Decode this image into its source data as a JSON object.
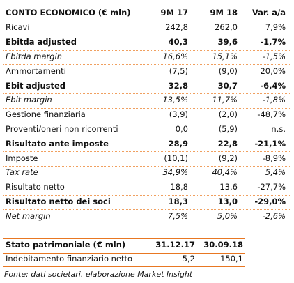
{
  "income_statement": {
    "header": [
      "CONTO ECONOMICO (€ mln)",
      "9M 17",
      "9M 18",
      "Var. a/a"
    ],
    "rows": [
      {
        "cells": [
          "Ricavi",
          "242,8",
          "262,0",
          "7,9%"
        ],
        "style": "normal"
      },
      {
        "cells": [
          "Ebitda adjusted",
          "40,3",
          "39,6",
          "-1,7%"
        ],
        "style": "bold"
      },
      {
        "cells": [
          "Ebitda margin",
          "16,6%",
          "15,1%",
          "-1,5%"
        ],
        "style": "italic"
      },
      {
        "cells": [
          "Ammortamenti",
          "(7,5)",
          "(9,0)",
          "20,0%"
        ],
        "style": "normal"
      },
      {
        "cells": [
          "Ebit adjusted",
          "32,8",
          "30,7",
          "-6,4%"
        ],
        "style": "bold"
      },
      {
        "cells": [
          "Ebit margin",
          "13,5%",
          "11,7%",
          "-1,8%"
        ],
        "style": "italic"
      },
      {
        "cells": [
          "Gestione finanziaria",
          "(3,9)",
          "(2,0)",
          "-48,7%"
        ],
        "style": "normal"
      },
      {
        "cells": [
          "Proventi/oneri non ricorrenti",
          "0,0",
          "(5,9)",
          "n.s."
        ],
        "style": "normal"
      },
      {
        "cells": [
          "Risultato ante imposte",
          "28,9",
          "22,8",
          "-21,1%"
        ],
        "style": "bold"
      },
      {
        "cells": [
          "Imposte",
          "(10,1)",
          "(9,2)",
          "-8,9%"
        ],
        "style": "normal"
      },
      {
        "cells": [
          "Tax rate",
          "34,9%",
          "40,4%",
          "5,4%"
        ],
        "style": "italic"
      },
      {
        "cells": [
          "Risultato netto",
          "18,8",
          "13,6",
          "-27,7%"
        ],
        "style": "normal"
      },
      {
        "cells": [
          "Risultato netto dei soci",
          "18,3",
          "13,0",
          "-29,0%"
        ],
        "style": "bold"
      },
      {
        "cells": [
          "Net margin",
          "7,5%",
          "5,0%",
          "-2,6%"
        ],
        "style": "italic"
      }
    ]
  },
  "balance_sheet": {
    "header": [
      "Stato patrimoniale (€ mln)",
      "31.12.17",
      "30.09.18"
    ],
    "rows": [
      {
        "cells": [
          "Indebitamento finanziario netto",
          "5,2",
          "150,1"
        ],
        "style": "normal"
      }
    ]
  },
  "source": "Fonte: dati societari, elaborazione Market Insight"
}
